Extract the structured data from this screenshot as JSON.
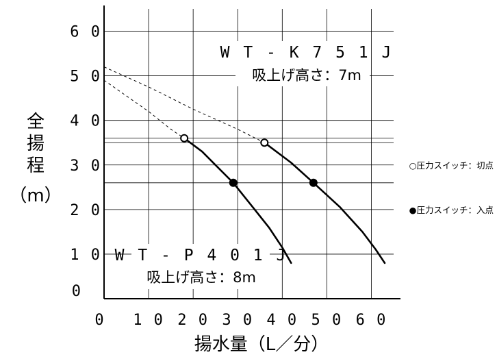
{
  "chart_data": {
    "type": "line",
    "title": "",
    "xlabel": "揚水量（L／分）",
    "ylabel": [
      "全",
      "揚",
      "程",
      "（m）"
    ],
    "xlim": [
      0,
      65
    ],
    "ylim": [
      0,
      65
    ],
    "x_ticks": [
      "0",
      "10",
      "20",
      "30",
      "40",
      "50",
      "60"
    ],
    "y_ticks": [
      "0",
      "10",
      "20",
      "30",
      "40",
      "50",
      "60"
    ],
    "grid": true,
    "series": [
      {
        "name": "WT-P401J",
        "suction_label": "吸上げ高さ：8m",
        "dashed_curve": [
          [
            0,
            49
          ],
          [
            5,
            45.5
          ],
          [
            10,
            42
          ],
          [
            15,
            38
          ],
          [
            18,
            36
          ]
        ],
        "solid_curve": [
          [
            18,
            36
          ],
          [
            22,
            33
          ],
          [
            26,
            29
          ],
          [
            29,
            26
          ],
          [
            33,
            21
          ],
          [
            37,
            16
          ],
          [
            40,
            11.5
          ],
          [
            42,
            8
          ]
        ],
        "cutoff_point": [
          18,
          36
        ],
        "cutin_point": [
          29,
          26
        ]
      },
      {
        "name": "WT-K751J",
        "suction_label": "吸上げ高さ：7m",
        "dashed_curve": [
          [
            0,
            52
          ],
          [
            10,
            47.5
          ],
          [
            20,
            42.5
          ],
          [
            30,
            38
          ],
          [
            36,
            35
          ]
        ],
        "solid_curve": [
          [
            36,
            35
          ],
          [
            42,
            30.5
          ],
          [
            47,
            26
          ],
          [
            53,
            20.5
          ],
          [
            58,
            15
          ],
          [
            61,
            11
          ],
          [
            63,
            8
          ]
        ],
        "cutoff_point": [
          36,
          35
        ],
        "cutin_point": [
          47,
          26
        ]
      }
    ],
    "reference_lines_y": [
      36,
      35,
      26
    ],
    "legend": {
      "cutoff": "○圧力スイッチ：切点",
      "cutin": "●圧力スイッチ：入点",
      "placement": "right"
    }
  }
}
